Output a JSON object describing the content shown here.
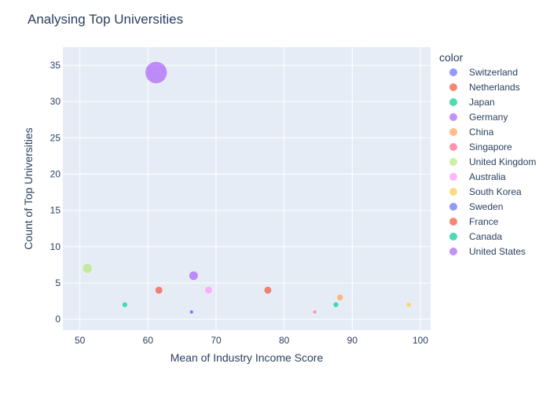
{
  "chart_data": {
    "type": "scatter",
    "title": "Analysing Top Universities",
    "xlabel": "Mean of Industry Income Score",
    "ylabel": "Count of Top Universities",
    "xlim": [
      47.5,
      101.5
    ],
    "ylim": [
      -1.5,
      37.5
    ],
    "x_ticks": [
      50,
      60,
      70,
      80,
      90,
      100
    ],
    "y_ticks": [
      0,
      5,
      10,
      15,
      20,
      25,
      30,
      35
    ],
    "grid": true,
    "legend_title": "color",
    "legend_position": "right",
    "series": [
      {
        "name": "Switzerland",
        "color": "#636efa",
        "x": 66.4,
        "y": 1
      },
      {
        "name": "Netherlands",
        "color": "#EF553B",
        "x": 77.6,
        "y": 4
      },
      {
        "name": "Japan",
        "color": "#00cc96",
        "x": 87.6,
        "y": 2
      },
      {
        "name": "Germany",
        "color": "#ab63fa",
        "x": 66.7,
        "y": 6
      },
      {
        "name": "China",
        "color": "#FFA15A",
        "x": 88.2,
        "y": 3
      },
      {
        "name": "Singapore",
        "color": "#FF6692",
        "x": 84.5,
        "y": 1
      },
      {
        "name": "United Kingdom",
        "color": "#B6E880",
        "x": 51.1,
        "y": 7
      },
      {
        "name": "Australia",
        "color": "#FF97FF",
        "x": 68.9,
        "y": 4
      },
      {
        "name": "South Korea",
        "color": "#FECB52",
        "x": 98.3,
        "y": 2
      },
      {
        "name": "Sweden",
        "color": "#636efa",
        "x": 66.4,
        "y": 1
      },
      {
        "name": "France",
        "color": "#EF553B",
        "x": 61.6,
        "y": 4
      },
      {
        "name": "Canada",
        "color": "#00cc96",
        "x": 56.6,
        "y": 2
      },
      {
        "name": "United States",
        "color": "#ab63fa",
        "x": 61.2,
        "y": 34
      }
    ]
  }
}
